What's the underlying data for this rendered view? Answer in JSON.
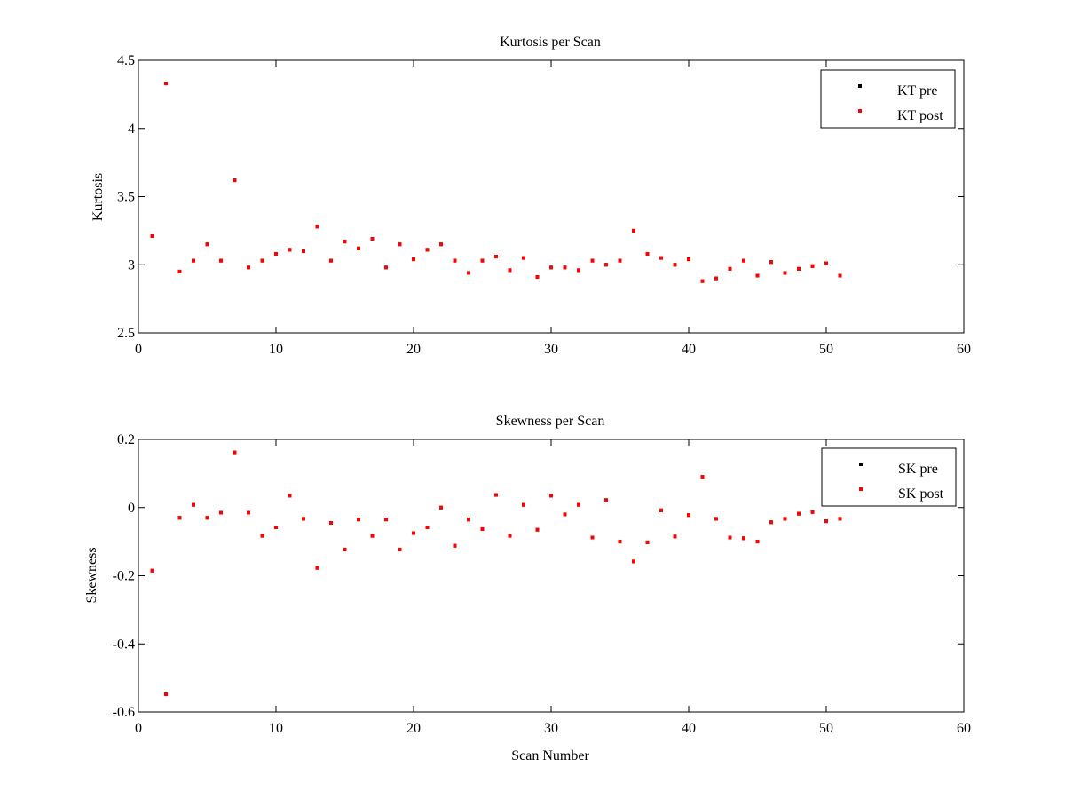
{
  "chart_data": [
    {
      "type": "scatter",
      "title": "Kurtosis per Scan",
      "xlabel": "",
      "ylabel": "Kurtosis",
      "xlim": [
        0,
        60
      ],
      "ylim": [
        2.5,
        4.5
      ],
      "xticks": [
        "0",
        "10",
        "20",
        "30",
        "40",
        "50",
        "60"
      ],
      "yticks": [
        "2.5",
        "3",
        "3.5",
        "4",
        "4.5"
      ],
      "grid": false,
      "legend_position": "top-right",
      "x": [
        1,
        2,
        3,
        4,
        5,
        6,
        7,
        8,
        9,
        10,
        11,
        12,
        13,
        14,
        15,
        16,
        17,
        18,
        19,
        20,
        21,
        22,
        23,
        24,
        25,
        26,
        27,
        28,
        29,
        30,
        31,
        32,
        33,
        34,
        35,
        36,
        37,
        38,
        39,
        40,
        41,
        42,
        43,
        44,
        45,
        46,
        47,
        48,
        49,
        50,
        51
      ],
      "series": [
        {
          "name": "KT pre",
          "color": "#000000",
          "values": [
            3.21,
            4.33,
            2.95,
            3.03,
            3.15,
            3.03,
            3.62,
            2.98,
            3.03,
            3.08,
            3.11,
            3.1,
            3.28,
            3.03,
            3.17,
            3.12,
            3.19,
            2.98,
            3.15,
            3.04,
            3.11,
            3.15,
            3.03,
            2.94,
            3.03,
            3.06,
            2.96,
            3.05,
            2.91,
            2.98,
            2.98,
            2.96,
            3.03,
            3.0,
            3.03,
            3.25,
            3.08,
            3.05,
            3.0,
            3.04,
            2.88,
            2.9,
            2.97,
            3.03,
            2.92,
            3.02,
            2.94,
            2.97,
            2.99,
            3.01,
            2.92
          ]
        },
        {
          "name": "KT post",
          "color": "#ff0000",
          "values": [
            3.21,
            4.33,
            2.95,
            3.03,
            3.15,
            3.03,
            3.62,
            2.98,
            3.03,
            3.08,
            3.11,
            3.1,
            3.28,
            3.03,
            3.17,
            3.12,
            3.19,
            2.98,
            3.15,
            3.04,
            3.11,
            3.15,
            3.03,
            2.94,
            3.03,
            3.06,
            2.96,
            3.05,
            2.91,
            2.98,
            2.98,
            2.96,
            3.03,
            3.0,
            3.03,
            3.25,
            3.08,
            3.05,
            3.0,
            3.04,
            2.88,
            2.9,
            2.97,
            3.03,
            2.92,
            3.02,
            2.94,
            2.97,
            2.99,
            3.01,
            2.92
          ]
        }
      ]
    },
    {
      "type": "scatter",
      "title": "Skewness per Scan",
      "xlabel": "Scan Number",
      "ylabel": "Skewness",
      "xlim": [
        0,
        60
      ],
      "ylim": [
        -0.6,
        0.2
      ],
      "xticks": [
        "0",
        "10",
        "20",
        "30",
        "40",
        "50",
        "60"
      ],
      "yticks": [
        "-0.6",
        "-0.4",
        "-0.2",
        "0",
        "0.2"
      ],
      "grid": false,
      "legend_position": "top-right",
      "x": [
        1,
        2,
        3,
        4,
        5,
        6,
        7,
        8,
        9,
        10,
        11,
        12,
        13,
        14,
        15,
        16,
        17,
        18,
        19,
        20,
        21,
        22,
        23,
        24,
        25,
        26,
        27,
        28,
        29,
        30,
        31,
        32,
        33,
        34,
        35,
        36,
        37,
        38,
        39,
        40,
        41,
        42,
        43,
        44,
        45,
        46,
        47,
        48,
        49,
        50,
        51
      ],
      "series": [
        {
          "name": "SK pre",
          "color": "#000000",
          "values": [
            -0.185,
            -0.548,
            -0.03,
            0.008,
            -0.03,
            -0.015,
            0.162,
            -0.015,
            -0.083,
            -0.058,
            0.035,
            -0.033,
            -0.177,
            -0.045,
            -0.123,
            -0.035,
            -0.083,
            -0.035,
            -0.123,
            -0.075,
            -0.058,
            0.0,
            -0.112,
            -0.035,
            -0.063,
            0.037,
            -0.083,
            0.008,
            -0.065,
            0.035,
            -0.02,
            0.008,
            -0.088,
            0.022,
            -0.1,
            -0.158,
            -0.102,
            -0.008,
            -0.085,
            -0.022,
            0.09,
            -0.033,
            -0.088,
            -0.09,
            -0.1,
            -0.043,
            -0.033,
            -0.018,
            -0.013,
            -0.04,
            -0.033
          ]
        },
        {
          "name": "SK post",
          "color": "#ff0000",
          "values": [
            -0.185,
            -0.548,
            -0.03,
            0.008,
            -0.03,
            -0.015,
            0.162,
            -0.015,
            -0.083,
            -0.058,
            0.035,
            -0.033,
            -0.177,
            -0.045,
            -0.123,
            -0.035,
            -0.083,
            -0.035,
            -0.123,
            -0.075,
            -0.058,
            0.0,
            -0.112,
            -0.035,
            -0.063,
            0.037,
            -0.083,
            0.008,
            -0.065,
            0.035,
            -0.02,
            0.008,
            -0.088,
            0.022,
            -0.1,
            -0.158,
            -0.102,
            -0.008,
            -0.085,
            -0.022,
            0.09,
            -0.033,
            -0.088,
            -0.09,
            -0.1,
            -0.043,
            -0.033,
            -0.018,
            -0.013,
            -0.04,
            -0.033
          ]
        }
      ]
    }
  ]
}
